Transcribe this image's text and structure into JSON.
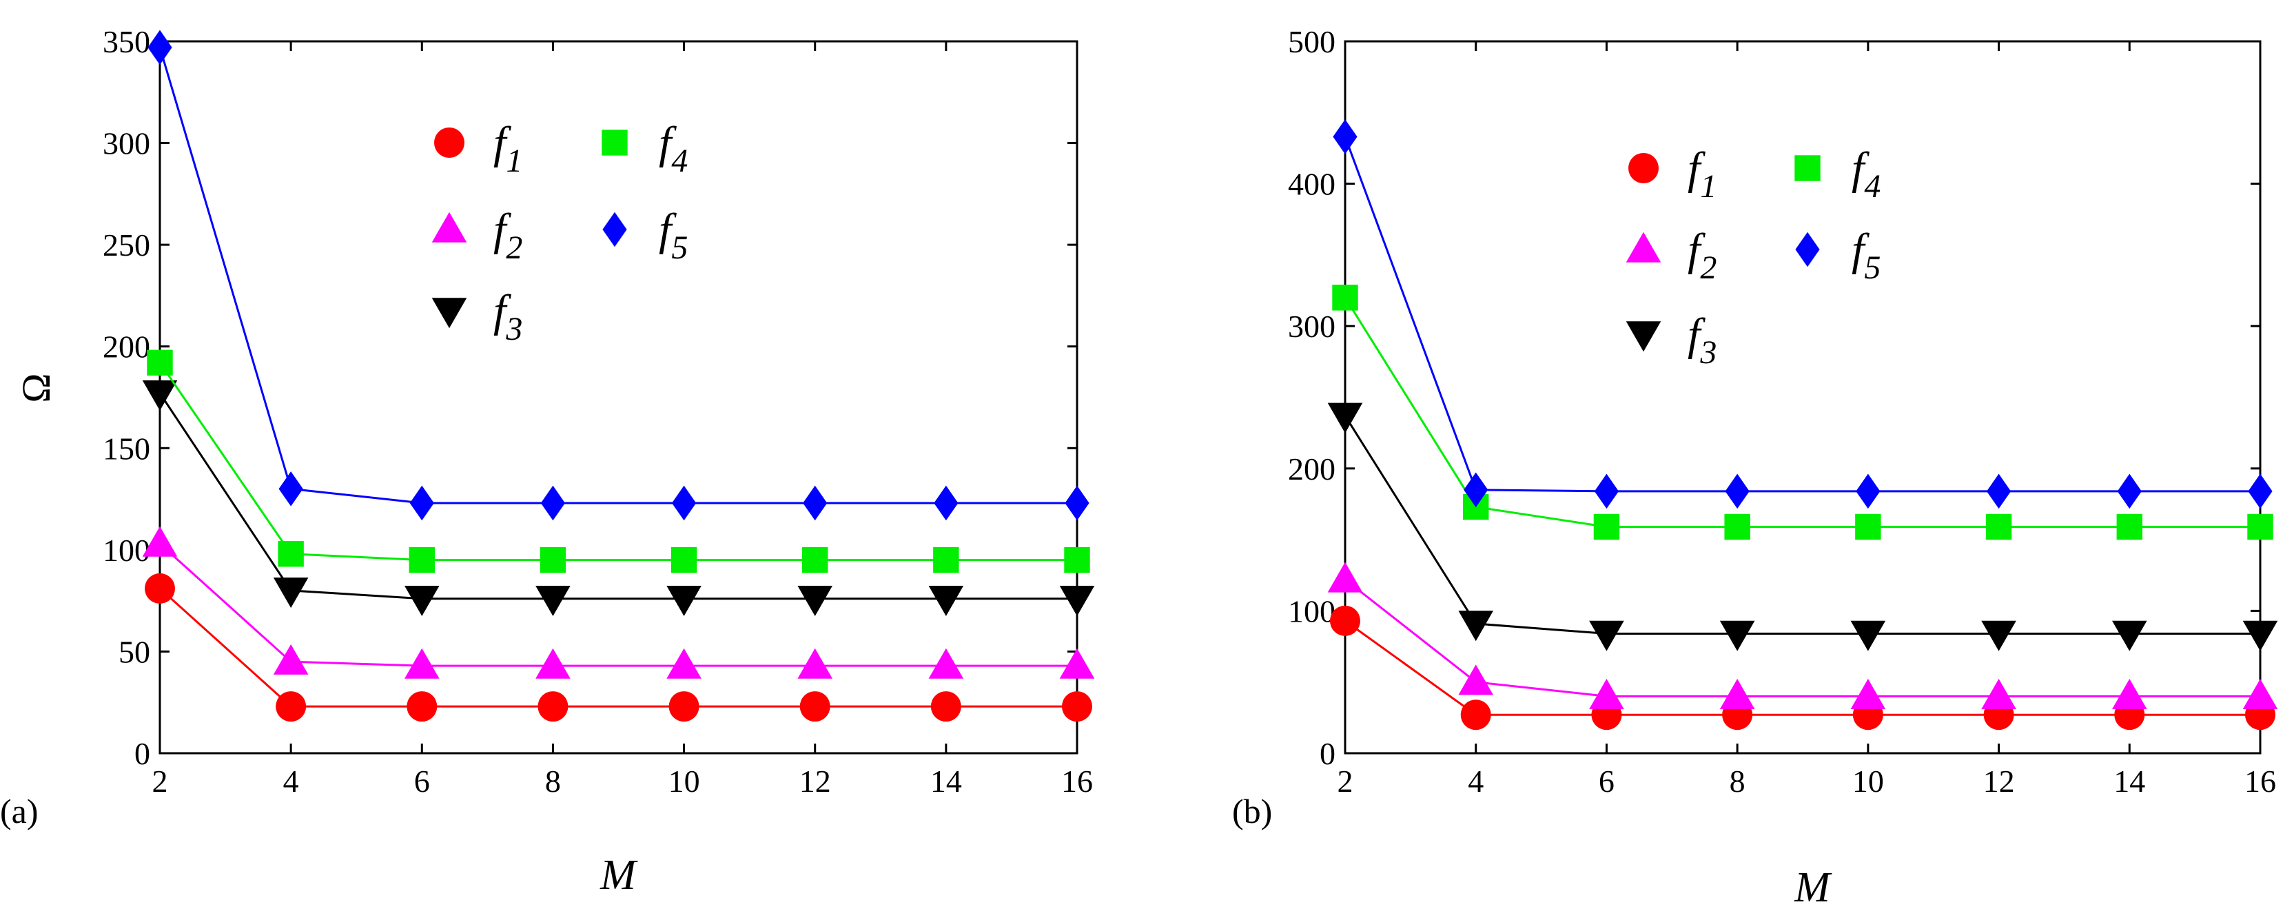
{
  "chart_data": [
    {
      "type": "line",
      "panel_label": "(a)",
      "xlabel": "M",
      "ylabel": "Ω",
      "x": [
        2,
        4,
        6,
        8,
        10,
        12,
        14,
        16
      ],
      "xlim": [
        2,
        16
      ],
      "ylim": [
        0,
        350
      ],
      "xticks": [
        2,
        4,
        6,
        8,
        10,
        12,
        14,
        16
      ],
      "yticks": [
        0,
        50,
        100,
        150,
        200,
        250,
        300,
        350
      ],
      "legend_placement": "top-center",
      "series": [
        {
          "name": "f",
          "sub": "1",
          "marker": "circle",
          "color": "#ff0000",
          "values": [
            81,
            23,
            23,
            23,
            23,
            23,
            23,
            23
          ]
        },
        {
          "name": "f",
          "sub": "2",
          "marker": "triangle-up",
          "color": "#ff00ff",
          "values": [
            103,
            45,
            43,
            43,
            43,
            43,
            43,
            43
          ]
        },
        {
          "name": "f",
          "sub": "3",
          "marker": "triangle-down",
          "color": "#000000",
          "values": [
            177,
            80,
            76,
            76,
            76,
            76,
            76,
            76
          ]
        },
        {
          "name": "f",
          "sub": "4",
          "marker": "square",
          "color": "#00ee00",
          "values": [
            192,
            98,
            95,
            95,
            95,
            95,
            95,
            95
          ]
        },
        {
          "name": "f",
          "sub": "5",
          "marker": "diamond",
          "color": "#0000ff",
          "values": [
            347,
            130,
            123,
            123,
            123,
            123,
            123,
            123
          ]
        }
      ]
    },
    {
      "type": "line",
      "panel_label": "(b)",
      "xlabel": "M",
      "ylabel": "",
      "x": [
        2,
        4,
        6,
        8,
        10,
        12,
        14,
        16
      ],
      "xlim": [
        2,
        16
      ],
      "ylim": [
        0,
        500
      ],
      "xticks": [
        2,
        4,
        6,
        8,
        10,
        12,
        14,
        16
      ],
      "yticks": [
        0,
        100,
        200,
        300,
        400,
        500
      ],
      "legend_placement": "top-center",
      "series": [
        {
          "name": "f",
          "sub": "1",
          "marker": "circle",
          "color": "#ff0000",
          "values": [
            93,
            27,
            27,
            27,
            27,
            27,
            27,
            27
          ]
        },
        {
          "name": "f",
          "sub": "2",
          "marker": "triangle-up",
          "color": "#ff00ff",
          "values": [
            122,
            50,
            40,
            40,
            40,
            40,
            40,
            40
          ]
        },
        {
          "name": "f",
          "sub": "3",
          "marker": "triangle-down",
          "color": "#000000",
          "values": [
            237,
            91,
            84,
            84,
            84,
            84,
            84,
            84
          ]
        },
        {
          "name": "f",
          "sub": "4",
          "marker": "square",
          "color": "#00ee00",
          "values": [
            320,
            173,
            159,
            159,
            159,
            159,
            159,
            159
          ]
        },
        {
          "name": "f",
          "sub": "5",
          "marker": "diamond",
          "color": "#0000ff",
          "values": [
            433,
            185,
            184,
            184,
            184,
            184,
            184,
            184
          ]
        }
      ]
    }
  ]
}
